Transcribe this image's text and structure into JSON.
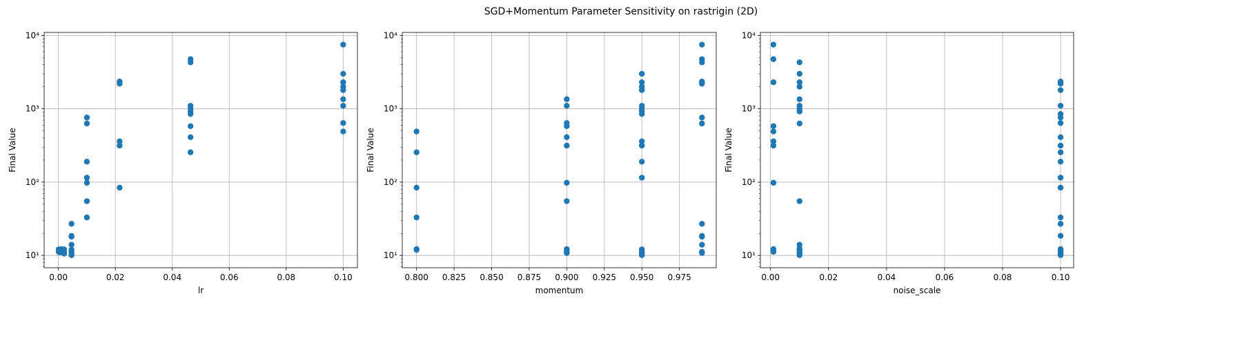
{
  "figure": {
    "title": "SGD+Momentum Parameter Sensitivity on rastrigin (2D)"
  },
  "colors": {
    "marker": "#1f77b4",
    "grid": "#b0b0b0",
    "axis": "#000000"
  },
  "chart_data": [
    {
      "type": "scatter",
      "xlabel": "lr",
      "ylabel": "Final Value",
      "xlim": [
        -0.005,
        0.105
      ],
      "ylim": [
        6.8,
        11000
      ],
      "yscale": "log",
      "grid": true,
      "xticks": [
        0.0,
        0.02,
        0.04,
        0.06,
        0.08,
        0.1
      ],
      "xtick_labels": [
        "0.00",
        "0.02",
        "0.04",
        "0.06",
        "0.08",
        "0.10"
      ],
      "yticks": [
        10,
        100,
        1000,
        10000
      ],
      "ytick_labels": [
        "10¹",
        "10²",
        "10³",
        "10⁴"
      ],
      "points": [
        [
          0.0001,
          11.2
        ],
        [
          0.0001,
          11.8
        ],
        [
          0.0001,
          12.1
        ],
        [
          0.0001,
          11.5
        ],
        [
          0.0005,
          11.0
        ],
        [
          0.0005,
          12.0
        ],
        [
          0.0005,
          11.6
        ],
        [
          0.001,
          11.3
        ],
        [
          0.001,
          12.2
        ],
        [
          0.001,
          11.7
        ],
        [
          0.002,
          10.6
        ],
        [
          0.002,
          11.1
        ],
        [
          0.002,
          11.9
        ],
        [
          0.002,
          12.1
        ],
        [
          0.0046,
          27
        ],
        [
          0.0046,
          18.5
        ],
        [
          0.0046,
          18
        ],
        [
          0.0046,
          14
        ],
        [
          0.0046,
          12
        ],
        [
          0.0046,
          11.2
        ],
        [
          0.0046,
          10.6
        ],
        [
          0.0046,
          10.1
        ],
        [
          0.01,
          760
        ],
        [
          0.01,
          630
        ],
        [
          0.01,
          190
        ],
        [
          0.01,
          115
        ],
        [
          0.01,
          98
        ],
        [
          0.01,
          55
        ],
        [
          0.01,
          33
        ],
        [
          0.0215,
          2350
        ],
        [
          0.0215,
          2200
        ],
        [
          0.0215,
          360
        ],
        [
          0.0215,
          315
        ],
        [
          0.0215,
          84
        ],
        [
          0.0464,
          4750
        ],
        [
          0.0464,
          4300
        ],
        [
          0.0464,
          1100
        ],
        [
          0.0464,
          1000
        ],
        [
          0.0464,
          920
        ],
        [
          0.0464,
          850
        ],
        [
          0.0464,
          580
        ],
        [
          0.0464,
          410
        ],
        [
          0.0464,
          255
        ],
        [
          0.1,
          7500
        ],
        [
          0.1,
          3000
        ],
        [
          0.1,
          2300
        ],
        [
          0.1,
          2000
        ],
        [
          0.1,
          1800
        ],
        [
          0.1,
          1350
        ],
        [
          0.1,
          1100
        ],
        [
          0.1,
          640
        ],
        [
          0.1,
          490
        ]
      ]
    },
    {
      "type": "scatter",
      "xlabel": "momentum",
      "ylabel": "Final Value",
      "xlim": [
        0.7905,
        0.9995
      ],
      "ylim": [
        6.8,
        11000
      ],
      "yscale": "log",
      "grid": true,
      "xticks": [
        0.8,
        0.825,
        0.85,
        0.875,
        0.9,
        0.925,
        0.95,
        0.975
      ],
      "xtick_labels": [
        "0.800",
        "0.825",
        "0.850",
        "0.875",
        "0.900",
        "0.925",
        "0.950",
        "0.975"
      ],
      "yticks": [
        10,
        100,
        1000,
        10000
      ],
      "ytick_labels": [
        "10¹",
        "10²",
        "10³",
        "10⁴"
      ],
      "points": [
        [
          0.8,
          490
        ],
        [
          0.8,
          255
        ],
        [
          0.8,
          84
        ],
        [
          0.8,
          33
        ],
        [
          0.8,
          12.2
        ],
        [
          0.8,
          11.9
        ],
        [
          0.9,
          1350
        ],
        [
          0.9,
          1100
        ],
        [
          0.9,
          640
        ],
        [
          0.9,
          580
        ],
        [
          0.9,
          410
        ],
        [
          0.9,
          315
        ],
        [
          0.9,
          98
        ],
        [
          0.9,
          55
        ],
        [
          0.9,
          12.2
        ],
        [
          0.9,
          11.7
        ],
        [
          0.9,
          11.2
        ],
        [
          0.9,
          10.8
        ],
        [
          0.95,
          3000
        ],
        [
          0.95,
          2300
        ],
        [
          0.95,
          2000
        ],
        [
          0.95,
          1800
        ],
        [
          0.95,
          1100
        ],
        [
          0.95,
          1000
        ],
        [
          0.95,
          920
        ],
        [
          0.95,
          850
        ],
        [
          0.95,
          360
        ],
        [
          0.95,
          315
        ],
        [
          0.95,
          190
        ],
        [
          0.95,
          115
        ],
        [
          0.95,
          12.1
        ],
        [
          0.95,
          11.5
        ],
        [
          0.95,
          11.0
        ],
        [
          0.95,
          10.6
        ],
        [
          0.95,
          10.1
        ],
        [
          0.99,
          7500
        ],
        [
          0.99,
          4750
        ],
        [
          0.99,
          4300
        ],
        [
          0.99,
          2350
        ],
        [
          0.99,
          2200
        ],
        [
          0.99,
          760
        ],
        [
          0.99,
          630
        ],
        [
          0.99,
          27
        ],
        [
          0.99,
          18.5
        ],
        [
          0.99,
          18
        ],
        [
          0.99,
          14
        ],
        [
          0.99,
          11.2
        ],
        [
          0.99,
          10.8
        ]
      ]
    },
    {
      "type": "scatter",
      "xlabel": "noise_scale",
      "ylabel": "Final Value",
      "xlim": [
        -0.0035,
        0.1045
      ],
      "ylim": [
        6.8,
        11000
      ],
      "yscale": "log",
      "grid": true,
      "xticks": [
        0.0,
        0.02,
        0.04,
        0.06,
        0.08,
        0.1
      ],
      "xtick_labels": [
        "0.00",
        "0.02",
        "0.04",
        "0.06",
        "0.08",
        "0.10"
      ],
      "yticks": [
        10,
        100,
        1000,
        10000
      ],
      "ytick_labels": [
        "10¹",
        "10²",
        "10³",
        "10⁴"
      ],
      "points": [
        [
          0.001,
          7500
        ],
        [
          0.001,
          4750
        ],
        [
          0.001,
          2300
        ],
        [
          0.001,
          580
        ],
        [
          0.001,
          490
        ],
        [
          0.001,
          360
        ],
        [
          0.001,
          315
        ],
        [
          0.001,
          98
        ],
        [
          0.001,
          12.2
        ],
        [
          0.001,
          11.7
        ],
        [
          0.001,
          11.2
        ],
        [
          0.01,
          4300
        ],
        [
          0.01,
          3000
        ],
        [
          0.01,
          2300
        ],
        [
          0.01,
          2000
        ],
        [
          0.01,
          1350
        ],
        [
          0.01,
          1100
        ],
        [
          0.01,
          1000
        ],
        [
          0.01,
          920
        ],
        [
          0.01,
          630
        ],
        [
          0.01,
          55
        ],
        [
          0.01,
          14
        ],
        [
          0.01,
          12.5
        ],
        [
          0.01,
          12
        ],
        [
          0.01,
          11.5
        ],
        [
          0.01,
          11
        ],
        [
          0.01,
          10.6
        ],
        [
          0.01,
          10.1
        ],
        [
          0.1,
          2350
        ],
        [
          0.1,
          2200
        ],
        [
          0.1,
          1800
        ],
        [
          0.1,
          1100
        ],
        [
          0.1,
          850
        ],
        [
          0.1,
          760
        ],
        [
          0.1,
          640
        ],
        [
          0.1,
          410
        ],
        [
          0.1,
          315
        ],
        [
          0.1,
          255
        ],
        [
          0.1,
          190
        ],
        [
          0.1,
          115
        ],
        [
          0.1,
          84
        ],
        [
          0.1,
          33
        ],
        [
          0.1,
          27
        ],
        [
          0.1,
          18.5
        ],
        [
          0.1,
          12.2
        ],
        [
          0.1,
          11.7
        ],
        [
          0.1,
          11.2
        ],
        [
          0.1,
          10.8
        ],
        [
          0.1,
          10.4
        ],
        [
          0.1,
          10.1
        ]
      ]
    }
  ]
}
